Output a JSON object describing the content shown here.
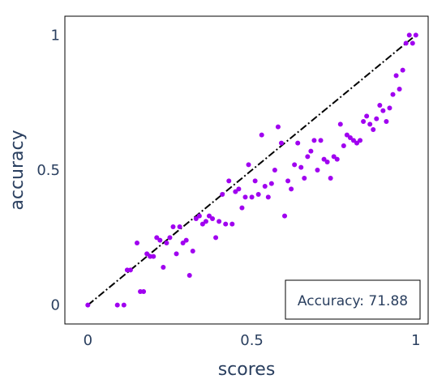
{
  "chart_data": {
    "type": "scatter",
    "xlabel": "scores",
    "ylabel": "accuracy",
    "xlim": [
      -0.07,
      1.0375
    ],
    "ylim": [
      -0.07,
      1.07
    ],
    "x_ticks": [
      0,
      0.5,
      1
    ],
    "x_tick_labels": [
      "0",
      "0.5",
      "1"
    ],
    "y_ticks": [
      0,
      0.5,
      1
    ],
    "y_tick_labels": [
      "0",
      "0.5",
      "1"
    ],
    "grid": false,
    "annotation": "Accuracy: 71.88",
    "annotation_position": "bottom-right",
    "series": [
      {
        "type": "scatter",
        "color": "#a000f0",
        "x": [
          0.0,
          0.09,
          0.11,
          0.12,
          0.13,
          0.15,
          0.16,
          0.17,
          0.18,
          0.19,
          0.2,
          0.21,
          0.22,
          0.23,
          0.24,
          0.25,
          0.26,
          0.27,
          0.28,
          0.29,
          0.3,
          0.31,
          0.32,
          0.33,
          0.34,
          0.35,
          0.36,
          0.37,
          0.38,
          0.39,
          0.4,
          0.41,
          0.42,
          0.43,
          0.44,
          0.45,
          0.46,
          0.47,
          0.48,
          0.49,
          0.5,
          0.51,
          0.52,
          0.53,
          0.54,
          0.55,
          0.56,
          0.57,
          0.58,
          0.59,
          0.6,
          0.61,
          0.62,
          0.63,
          0.64,
          0.65,
          0.66,
          0.67,
          0.68,
          0.69,
          0.7,
          0.71,
          0.72,
          0.73,
          0.74,
          0.75,
          0.76,
          0.77,
          0.78,
          0.79,
          0.8,
          0.81,
          0.82,
          0.83,
          0.84,
          0.85,
          0.86,
          0.87,
          0.88,
          0.89,
          0.9,
          0.91,
          0.92,
          0.93,
          0.94,
          0.95,
          0.96,
          0.97,
          0.98,
          0.99,
          1.0
        ],
        "y": [
          0.0,
          0.0,
          0.0,
          0.13,
          0.13,
          0.23,
          0.05,
          0.05,
          0.19,
          0.18,
          0.18,
          0.25,
          0.24,
          0.14,
          0.23,
          0.25,
          0.29,
          0.19,
          0.29,
          0.23,
          0.24,
          0.11,
          0.2,
          0.32,
          0.33,
          0.3,
          0.31,
          0.33,
          0.32,
          0.25,
          0.31,
          0.41,
          0.3,
          0.46,
          0.3,
          0.42,
          0.43,
          0.36,
          0.4,
          0.52,
          0.4,
          0.46,
          0.41,
          0.63,
          0.44,
          0.4,
          0.45,
          0.5,
          0.66,
          0.6,
          0.33,
          0.46,
          0.43,
          0.52,
          0.6,
          0.51,
          0.47,
          0.55,
          0.57,
          0.61,
          0.5,
          0.61,
          0.54,
          0.53,
          0.47,
          0.55,
          0.54,
          0.67,
          0.59,
          0.63,
          0.62,
          0.61,
          0.6,
          0.61,
          0.68,
          0.7,
          0.67,
          0.65,
          0.69,
          0.74,
          0.72,
          0.68,
          0.73,
          0.78,
          0.85,
          0.8,
          0.87,
          0.97,
          1.0,
          0.97,
          1.0
        ]
      },
      {
        "type": "line",
        "color": "#000000",
        "dash": "dashdot",
        "x": [
          0,
          1
        ],
        "y": [
          0,
          1
        ]
      }
    ]
  }
}
